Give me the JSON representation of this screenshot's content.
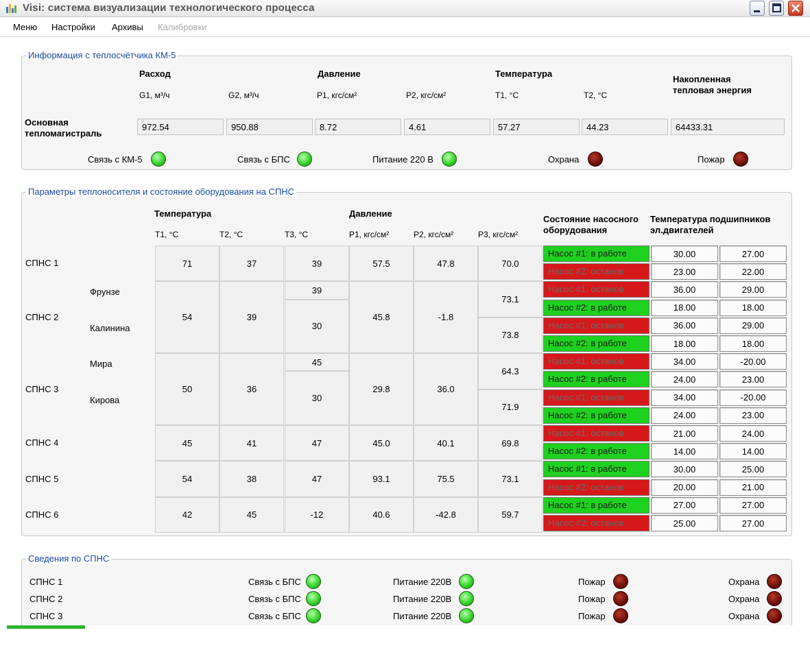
{
  "window": {
    "title": "Visi: система визуализации технологического процесса"
  },
  "menu": [
    "Меню",
    "Настройки",
    "Архивы",
    "Калибровки"
  ],
  "km5": {
    "group_title": "Информация с теплосчётчика КМ-5",
    "headers": {
      "flow": "Расход",
      "pressure": "Давление",
      "temperature": "Температура",
      "energy_line1": "Накопленная",
      "energy_line2": "тепловая энергия"
    },
    "columns": [
      "G1, м³/ч",
      "G2, м³/ч",
      "P1, кгс/см²",
      "P2, кгс/см²",
      "T1, °С",
      "T2, °С"
    ],
    "row_label_line1": "Основная",
    "row_label_line2": "тепломагистраль",
    "values": [
      "972.54",
      "950.88",
      "8.72",
      "4.61",
      "57.27",
      "44.23",
      "64433.31"
    ],
    "indicators": [
      {
        "label": "Связь с КМ-5",
        "state": "green"
      },
      {
        "label": "Связь с БПС",
        "state": "green"
      },
      {
        "label": "Питание 220 В",
        "state": "green"
      },
      {
        "label": "Охрана",
        "state": "red"
      },
      {
        "label": "Пожар",
        "state": "red"
      }
    ]
  },
  "spns": {
    "group_title": "Параметры теплоносителя и состояние оборудования на СПНС",
    "headers": {
      "temperature": "Температура",
      "pressure": "Давление",
      "pump_state_line1": "Состояние насосного",
      "pump_state_line2": "оборудования",
      "bearing_line1": "Температура подшипников",
      "bearing_line2": "эл.двигателей"
    },
    "columns": [
      "T1, °С",
      "T2, °С",
      "T3, °С",
      "P1, кгс/см²",
      "P2, кгс/см²",
      "P3, кгс/см²"
    ],
    "stations": [
      {
        "name": "СПНС 1",
        "subs": [],
        "t1": "71",
        "t2": "37",
        "t3": [
          "39"
        ],
        "p1": "57.5",
        "p2": "47.8",
        "p3": [
          "70.0"
        ]
      },
      {
        "name": "СПНС 2",
        "subs": [
          "Фрунзе",
          "Калинина"
        ],
        "t1": "54",
        "t2": "39",
        "t3": [
          "39",
          "30"
        ],
        "p1": "45.8",
        "p2": "-1.8",
        "p3": [
          "73.1",
          "73.8"
        ]
      },
      {
        "name": "СПНС 3",
        "subs": [
          "Мира",
          "Кирова"
        ],
        "t1": "50",
        "t2": "36",
        "t3": [
          "45",
          "30"
        ],
        "p1": "29.8",
        "p2": "36.0",
        "p3": [
          "64.3",
          "71.9"
        ]
      },
      {
        "name": "СПНС 4",
        "subs": [],
        "t1": "45",
        "t2": "41",
        "t3": [
          "47"
        ],
        "p1": "45.0",
        "p2": "40.1",
        "p3": [
          "69.8"
        ]
      },
      {
        "name": "СПНС 5",
        "subs": [],
        "t1": "54",
        "t2": "38",
        "t3": [
          "47"
        ],
        "p1": "93.1",
        "p2": "75.5",
        "p3": [
          "73.1"
        ]
      },
      {
        "name": "СПНС 6",
        "subs": [],
        "t1": "42",
        "t2": "45",
        "t3": [
          "-12"
        ],
        "p1": "40.6",
        "p2": "-42.8",
        "p3": [
          "59.7"
        ]
      }
    ],
    "pumps": [
      {
        "label": "Насос #1: в работе",
        "on": true,
        "b1": "30.00",
        "b2": "27.00"
      },
      {
        "label": "Насос #2: останов",
        "on": false,
        "b1": "23.00",
        "b2": "22.00"
      },
      {
        "label": "Насос #1: останов",
        "on": false,
        "b1": "36.00",
        "b2": "29.00"
      },
      {
        "label": "Насос #2: в работе",
        "on": true,
        "b1": "18.00",
        "b2": "18.00"
      },
      {
        "label": "Насос #1: останов",
        "on": false,
        "b1": "36.00",
        "b2": "29.00"
      },
      {
        "label": "Насос #2: в работе",
        "on": true,
        "b1": "18.00",
        "b2": "18.00"
      },
      {
        "label": "Насос #1: останов",
        "on": false,
        "b1": "34.00",
        "b2": "-20.00"
      },
      {
        "label": "Насос #2: в работе",
        "on": true,
        "b1": "24.00",
        "b2": "23.00"
      },
      {
        "label": "Насос #1: останов",
        "on": false,
        "b1": "34.00",
        "b2": "-20.00"
      },
      {
        "label": "Насос #2: в работе",
        "on": true,
        "b1": "24.00",
        "b2": "23.00"
      },
      {
        "label": "Насос #1: останов",
        "on": false,
        "b1": "21.00",
        "b2": "24.00"
      },
      {
        "label": "Насос #2: в работе",
        "on": true,
        "b1": "14.00",
        "b2": "14.00"
      },
      {
        "label": "Насос #1: в работе",
        "on": true,
        "b1": "30.00",
        "b2": "25.00"
      },
      {
        "label": "Насос #2: останов",
        "on": false,
        "b1": "20.00",
        "b2": "21.00"
      },
      {
        "label": "Насос #1: в работе",
        "on": true,
        "b1": "27.00",
        "b2": "27.00"
      },
      {
        "label": "Насос #2: останов",
        "on": false,
        "b1": "25.00",
        "b2": "27.00"
      }
    ]
  },
  "status": {
    "group_title": "Сведения по СПНС",
    "rows": [
      {
        "name": "СПНС 1",
        "labels": [
          "Связь с БПС",
          "Питание 220В",
          "Пожар",
          "Охрана"
        ],
        "states": [
          "green",
          "green",
          "red",
          "red"
        ]
      },
      {
        "name": "СПНС 2",
        "labels": [
          "Связь с БПС",
          "Питание 220В",
          "Пожар",
          "Охрана"
        ],
        "states": [
          "green",
          "green",
          "red",
          "red"
        ]
      },
      {
        "name": "СПНС 3",
        "labels": [
          "Связь с БПС",
          "Питание 220В",
          "Пожар",
          "Охрана"
        ],
        "states": [
          "green",
          "green",
          "red",
          "red"
        ]
      }
    ]
  }
}
